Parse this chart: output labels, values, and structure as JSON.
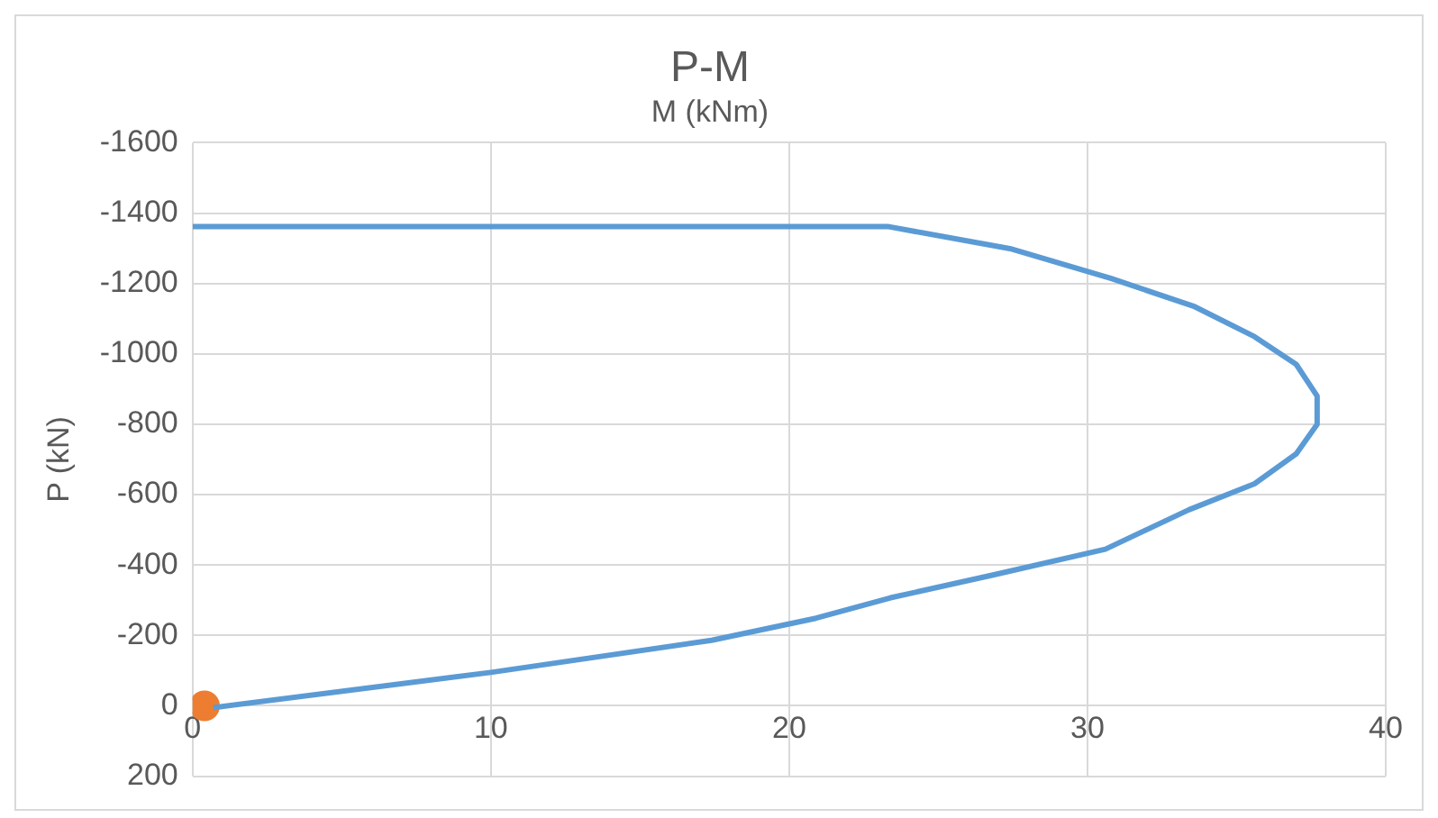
{
  "chart_data": {
    "type": "line",
    "title": "P-M",
    "xlabel": "M (kNm)",
    "ylabel": "P (kN)",
    "xlim": [
      0,
      40
    ],
    "xticks": [
      0,
      10,
      20,
      30,
      40
    ],
    "ylim": [
      200,
      -1600
    ],
    "yticks": [
      200,
      0,
      -200,
      -400,
      -600,
      -800,
      -1000,
      -1200,
      -1400,
      -1600
    ],
    "grid": true,
    "legend": false,
    "marker": "none",
    "line_style": "solid",
    "series": [
      {
        "color": "#5b9bd5",
        "x": [
          0.7,
          10,
          17.4,
          20.9,
          23.4,
          26.8,
          30.6,
          33.4,
          35.6,
          37,
          37.7,
          37.7,
          37,
          35.6,
          33.6,
          30.8,
          27.4,
          23.3,
          0
        ],
        "values": [
          5,
          -95,
          -186,
          -249,
          -307,
          -371,
          -445,
          -557,
          -631,
          -716,
          -800,
          -880,
          -970,
          -1049,
          -1134,
          -1214,
          -1299,
          -1362,
          -1362
        ]
      },
      {
        "type": "scatter",
        "color": "#ed7d31",
        "marker": "circle",
        "x": [
          0.4
        ],
        "values": [
          0
        ]
      }
    ]
  }
}
